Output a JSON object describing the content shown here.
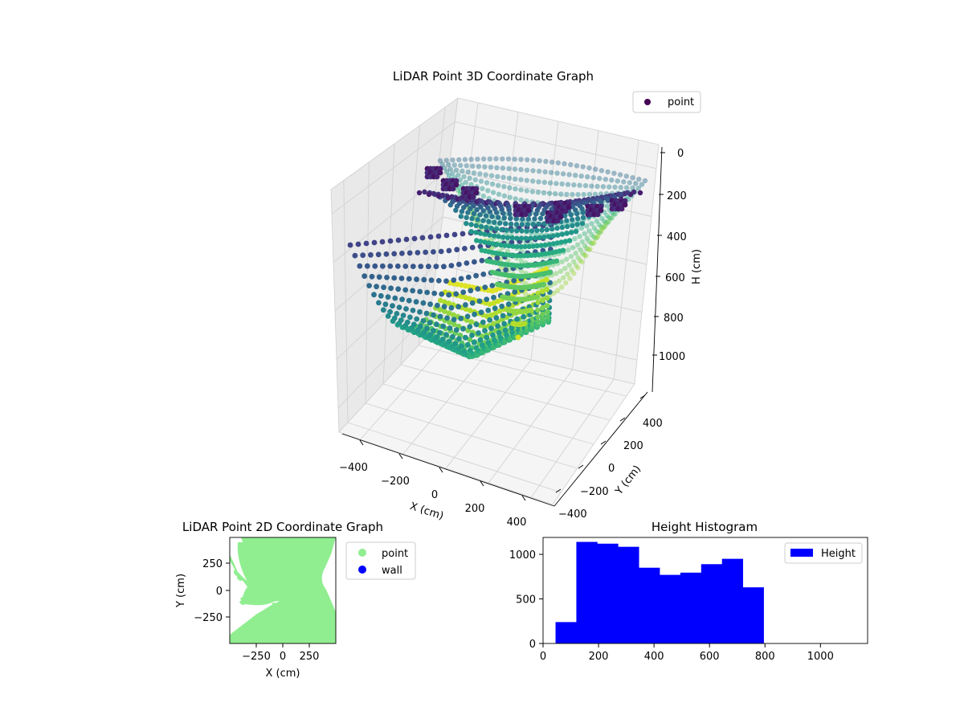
{
  "chart_data": [
    {
      "type": "scatter",
      "projection": "3d",
      "title": "LiDAR Point 3D Coordinate Graph",
      "xlabel": "X (cm)",
      "ylabel": "Y (cm)",
      "zlabel": "H (cm)",
      "xticks": [
        -400,
        -200,
        0,
        200,
        400
      ],
      "yticks": [
        -400,
        -200,
        0,
        200,
        400
      ],
      "zticks": [
        0,
        200,
        400,
        600,
        800,
        1000
      ],
      "xlim": [
        -480,
        480
      ],
      "ylim": [
        -480,
        480
      ],
      "zlim": [
        1100,
        0
      ],
      "z_axis_inverted": true,
      "colormap": "viridis",
      "legend": [
        "point"
      ],
      "legend_color": "#440154",
      "legend_placement": "top-right",
      "grid": true,
      "note_shape": "bowl-shaped surface of ring scan lines; two dense groups — front arc around X -400..300, Y -400..-100, H 300..800 and a back/right arc along Y 300..480 with H 0..800"
    },
    {
      "type": "scatter",
      "title": "LiDAR Point 2D Coordinate Graph",
      "xlabel": "X (cm)",
      "ylabel": "Y (cm)",
      "xticks": [
        "−250",
        "0",
        "250"
      ],
      "yticks": [
        "250",
        "0",
        "−250"
      ],
      "xlim": [
        -480,
        480
      ],
      "ylim": [
        -480,
        480
      ],
      "series": [
        {
          "name": "point",
          "color": "#90ee90"
        },
        {
          "name": "wall",
          "color": "#0000ff"
        }
      ],
      "legend_placement": "outside-right"
    },
    {
      "type": "bar",
      "subtype": "histogram",
      "title": "Height Histogram",
      "xticks": [
        "0",
        "200",
        "400",
        "600",
        "800",
        "1000"
      ],
      "yticks": [
        "0",
        "500",
        "1000"
      ],
      "xlim": [
        0,
        1170
      ],
      "ylim": [
        0,
        1190
      ],
      "bin_edges": [
        45,
        120,
        195,
        270,
        345,
        420,
        495,
        570,
        645,
        720,
        795,
        870,
        945,
        1020,
        1095,
        1170
      ],
      "values": [
        240,
        1140,
        1120,
        1085,
        850,
        770,
        795,
        890,
        950,
        630,
        0,
        0,
        0,
        0,
        0
      ],
      "series": [
        {
          "name": "Height",
          "color": "#0000ff"
        }
      ],
      "legend_placement": "top-right"
    }
  ]
}
